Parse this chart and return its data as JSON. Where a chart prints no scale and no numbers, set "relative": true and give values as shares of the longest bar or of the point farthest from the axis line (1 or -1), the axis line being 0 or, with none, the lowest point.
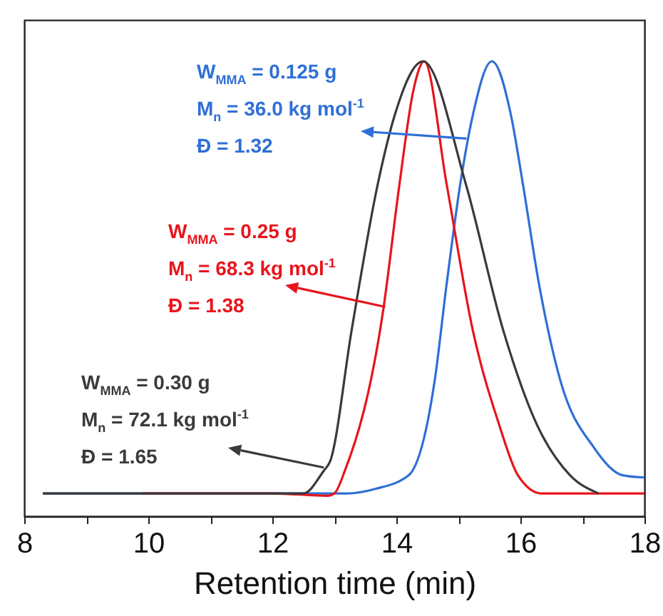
{
  "chart_data": {
    "type": "line",
    "xlabel": "Retention time (min)",
    "xlim": [
      8,
      18
    ],
    "xticks": [
      8,
      {
        "value": 9,
        "label": null
      },
      10,
      {
        "value": 11,
        "label": null
      },
      12,
      {
        "value": 13,
        "label": null
      },
      14,
      {
        "value": 15,
        "label": null
      },
      16,
      {
        "value": 17,
        "label": null
      },
      18
    ],
    "relative": true,
    "marker": "none",
    "line_style": "solid",
    "grid": false,
    "series": [
      {
        "color": "#2f6fd6",
        "x": [
          8.3,
          10,
          12,
          13.2,
          13.66,
          14.2,
          14.62,
          14.81,
          15.03,
          15.23,
          15.54,
          15.85,
          16.04,
          16.3,
          16.64,
          17.19,
          17.65,
          18
        ],
        "values": [
          0.05,
          0.05,
          0.05,
          0.05,
          0.06,
          0.09,
          0.3,
          0.51,
          0.73,
          0.88,
          1,
          0.88,
          0.73,
          0.51,
          0.3,
          0.15,
          0.09,
          0.085
        ]
      },
      {
        "color": "#e8141c",
        "x": [
          9.9,
          11,
          12,
          12.9,
          13.0,
          13.17,
          13.79,
          14.05,
          14.28,
          14.45,
          14.81,
          15.23,
          15.66,
          15.96,
          16.34,
          17,
          18
        ],
        "values": [
          0.05,
          0.05,
          0.05,
          0.045,
          0.05,
          0.1,
          0.455,
          0.73,
          0.94,
          1,
          0.73,
          0.41,
          0.2,
          0.09,
          0.05,
          0.05,
          0.05
        ]
      },
      {
        "color": "#3a3a3a",
        "x": [
          8.3,
          10,
          12,
          12.5,
          12.83,
          12.93,
          13.28,
          13.7,
          13.97,
          14.43,
          15.12,
          15.72,
          16.27,
          16.8,
          17.26
        ],
        "values": [
          0.05,
          0.05,
          0.05,
          0.05,
          0.1,
          0.12,
          0.41,
          0.73,
          0.88,
          1,
          0.73,
          0.41,
          0.2,
          0.09,
          0.05
        ]
      }
    ],
    "annotations": [
      "W$_{MMA}$ = 0.125 g",
      {
        "text": "M$_{n}$ = 36.0 kg mol$^{-1}$",
        "x": 15.13,
        "y": 0.83
      },
      "Đ = 1.32",
      "W$_{MMA}$ = 0.25 g",
      {
        "text": "M$_{n}$ = 68.3 kg mol$^{-1}$",
        "x": 13.82,
        "y": 0.46
      },
      "Đ = 1.38",
      "W$_{MMA}$ = 0.30 g",
      {
        "text": "M$_{n}$ = 72.1 kg mol$^{-1}$",
        "x": 12.83,
        "y": 0.107
      },
      "Đ = 1.65"
    ]
  }
}
